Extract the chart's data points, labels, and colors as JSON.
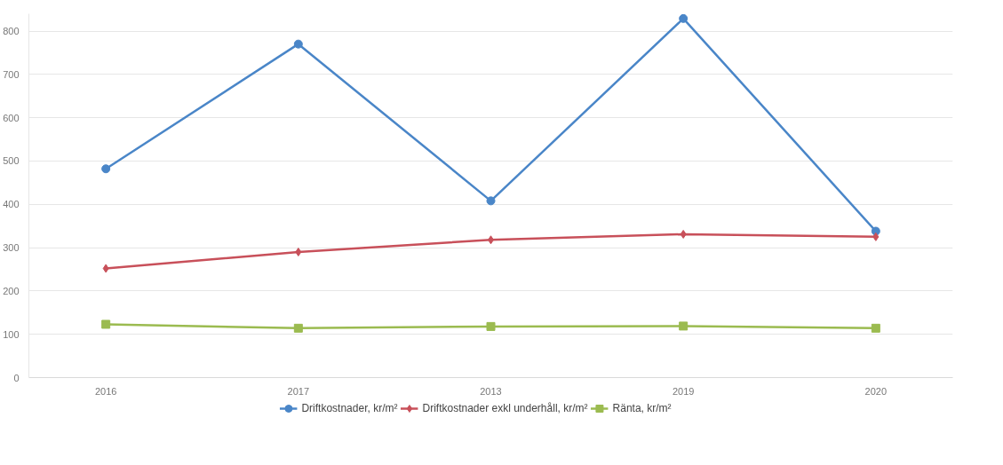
{
  "chart_data": {
    "type": "line",
    "categories": [
      "2016",
      "2017",
      "2013",
      "2019",
      "2020"
    ],
    "series": [
      {
        "name": "Driftkostnader, kr/m²",
        "color": "#4a86c8",
        "marker": "circle",
        "values": [
          482,
          770,
          408,
          829,
          338
        ]
      },
      {
        "name": "Driftkostnader exkl underhåll, kr/m²",
        "color": "#c8505a",
        "marker": "diamond",
        "values": [
          252,
          290,
          318,
          331,
          325
        ]
      },
      {
        "name": "Ränta, kr/m²",
        "color": "#9bbb50",
        "marker": "square",
        "values": [
          123,
          114,
          118,
          119,
          114
        ]
      }
    ],
    "ylim": [
      0,
      840
    ],
    "yticks": [
      0,
      100,
      200,
      300,
      400,
      500,
      600,
      700,
      800
    ],
    "grid": "y",
    "legend": "bottom",
    "line_style": "solid"
  }
}
